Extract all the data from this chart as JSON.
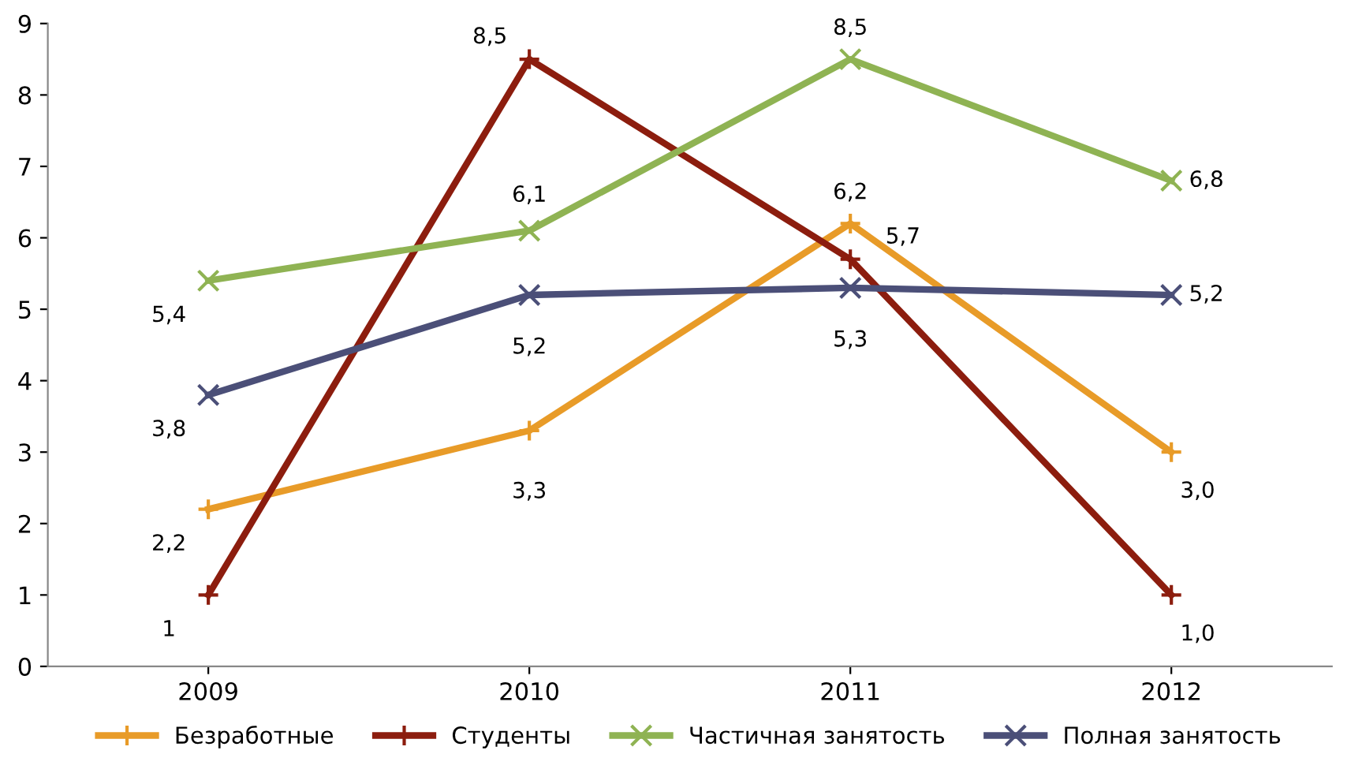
{
  "chart_data": {
    "type": "line",
    "categories": [
      "2009",
      "2010",
      "2011",
      "2012"
    ],
    "series": [
      {
        "name": "Безработные",
        "color": "#e89b28",
        "marker": "plus",
        "values": [
          2.2,
          3.3,
          6.2,
          3.0
        ],
        "value_labels": [
          "2,2",
          "3,3",
          "6,2",
          "3,0"
        ]
      },
      {
        "name": "Студенты",
        "color": "#8c1d0e",
        "marker": "plus",
        "values": [
          1,
          8.5,
          5.7,
          1.0
        ],
        "value_labels": [
          "1",
          "8,5",
          "5,7",
          "1,0"
        ]
      },
      {
        "name": "Частичная занятость",
        "color": "#8fb353",
        "marker": "cross",
        "values": [
          5.4,
          6.1,
          8.5,
          6.8
        ],
        "value_labels": [
          "5,4",
          "6,1",
          "8,5",
          "6,8"
        ]
      },
      {
        "name": "Полная занятость",
        "color": "#4b4f78",
        "marker": "cross",
        "values": [
          3.8,
          5.2,
          5.3,
          5.2
        ],
        "value_labels": [
          "3,8",
          "5,2",
          "5,3",
          "5,2"
        ]
      }
    ],
    "ylim": [
      0,
      9
    ],
    "yticks": [
      0,
      1,
      2,
      3,
      4,
      5,
      6,
      7,
      8,
      9
    ],
    "grid": false,
    "legend": "bottom"
  }
}
